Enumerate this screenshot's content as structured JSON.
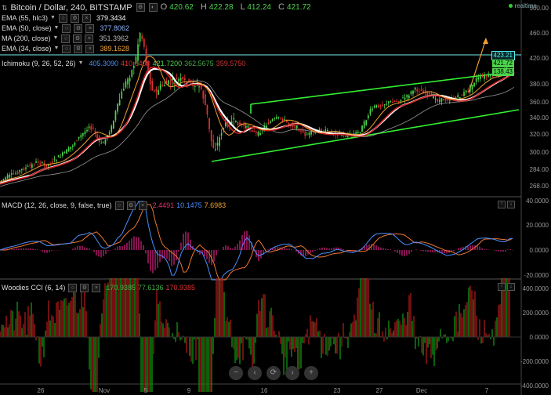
{
  "header": {
    "title": "Bitcoin / Dollar, 240, BITSTAMP",
    "o_label": "O",
    "o": "420.62",
    "h_label": "H",
    "h": "422.28",
    "l_label": "L",
    "l": "412.24",
    "c_label": "C",
    "c": "421.72",
    "realtime": "realtime"
  },
  "legends": [
    {
      "label": "EMA (55, hlc3)",
      "values": [
        "379.3434"
      ],
      "colors": [
        "#ffffff"
      ]
    },
    {
      "label": "EMA (50, close)",
      "values": [
        "377.8062"
      ],
      "colors": [
        "#8fb4ff"
      ]
    },
    {
      "label": "MA (200, close)",
      "values": [
        "351.3962"
      ],
      "colors": [
        "#bbbbbb"
      ]
    },
    {
      "label": "EMA (34, close)",
      "values": [
        "389.1628"
      ],
      "colors": [
        "#f0a030"
      ]
    },
    {
      "label": "Ichimoku (9, 26, 52, 26)",
      "values": [
        "405.3090",
        "410.6400",
        "421.7200",
        "362.5675",
        "359.5750"
      ],
      "colors": [
        "#4a8fff",
        "#d33",
        "#4cd44c",
        "#44aa44",
        "#cc3333"
      ]
    }
  ],
  "indicators": {
    "macd": {
      "label": "MACD (12, 26, close, 9, false, true)",
      "values": [
        "2.4491",
        "10.1475",
        "7.6983"
      ],
      "colors": [
        "#e03070",
        "#4a8fff",
        "#f0a030"
      ]
    },
    "cci": {
      "label": "Woodies CCI (6, 14)",
      "values": [
        "170.9385",
        "77.6136",
        "170.9385"
      ],
      "colors": [
        "#44aa44",
        "#44aa44",
        "#dd3333"
      ]
    }
  },
  "price_tags": [
    {
      "value": "423.21",
      "bg": "#0a2a2a",
      "fg": "#5ee"
    },
    {
      "value": "421.72",
      "bg": "#4cd44c",
      "fg": "#000"
    },
    {
      "value": "138.43",
      "bg": "#4cd44c",
      "fg": "#000"
    }
  ],
  "navigation": {
    "zoom_out": "−",
    "scroll_left": "‹",
    "reset": "⟳",
    "scroll_right": "›",
    "zoom_in": "+"
  },
  "chart_data": {
    "type": "candlestick",
    "x_ticks": [
      "26",
      "Nov",
      "5",
      "9",
      "16",
      "23",
      "27",
      "Dec",
      "7"
    ],
    "price_axis": [
      "500.00",
      "460.00",
      "420.00",
      "380.00",
      "360.00",
      "340.00",
      "320.00",
      "300.00",
      "284.00",
      "268.00"
    ],
    "macd_axis": [
      "40.0000",
      "20.0000",
      "0.0000",
      "-20.0000"
    ],
    "cci_axis": [
      "400.0000",
      "200.0000",
      "0.0000",
      "-200.0000",
      "-400.0000"
    ],
    "price_path": [
      [
        0,
        232
      ],
      [
        10,
        226
      ],
      [
        20,
        222
      ],
      [
        30,
        216
      ],
      [
        40,
        212
      ],
      [
        50,
        206
      ],
      [
        60,
        212
      ],
      [
        70,
        205
      ],
      [
        80,
        198
      ],
      [
        90,
        190
      ],
      [
        100,
        178
      ],
      [
        110,
        168
      ],
      [
        115,
        160
      ],
      [
        120,
        165
      ],
      [
        125,
        175
      ],
      [
        130,
        185
      ],
      [
        135,
        180
      ],
      [
        140,
        170
      ],
      [
        145,
        160
      ],
      [
        150,
        140
      ],
      [
        155,
        125
      ],
      [
        160,
        110
      ],
      [
        165,
        100
      ],
      [
        170,
        90
      ],
      [
        175,
        75
      ],
      [
        180,
        40
      ],
      [
        185,
        55
      ],
      [
        190,
        90
      ],
      [
        195,
        110
      ],
      [
        200,
        120
      ],
      [
        205,
        112
      ],
      [
        210,
        108
      ],
      [
        220,
        105
      ],
      [
        230,
        102
      ],
      [
        240,
        105
      ],
      [
        250,
        108
      ],
      [
        258,
        112
      ],
      [
        265,
        140
      ],
      [
        270,
        175
      ],
      [
        275,
        190
      ],
      [
        280,
        182
      ],
      [
        285,
        165
      ],
      [
        290,
        158
      ],
      [
        300,
        155
      ],
      [
        310,
        160
      ],
      [
        320,
        163
      ],
      [
        330,
        172
      ],
      [
        340,
        160
      ],
      [
        350,
        153
      ],
      [
        360,
        150
      ],
      [
        370,
        158
      ],
      [
        380,
        162
      ],
      [
        390,
        172
      ],
      [
        400,
        170
      ],
      [
        410,
        166
      ],
      [
        420,
        168
      ],
      [
        430,
        170
      ],
      [
        440,
        173
      ],
      [
        450,
        172
      ],
      [
        460,
        168
      ],
      [
        465,
        160
      ],
      [
        470,
        150
      ],
      [
        475,
        140
      ],
      [
        480,
        136
      ],
      [
        490,
        133
      ],
      [
        500,
        130
      ],
      [
        510,
        128
      ],
      [
        520,
        124
      ],
      [
        530,
        114
      ],
      [
        540,
        116
      ],
      [
        550,
        122
      ],
      [
        560,
        128
      ],
      [
        570,
        127
      ],
      [
        580,
        126
      ],
      [
        590,
        122
      ],
      [
        600,
        114
      ],
      [
        610,
        100
      ],
      [
        620,
        98
      ],
      [
        630,
        97
      ],
      [
        640,
        95
      ],
      [
        645,
        88
      ],
      [
        650,
        73
      ]
    ]
  }
}
